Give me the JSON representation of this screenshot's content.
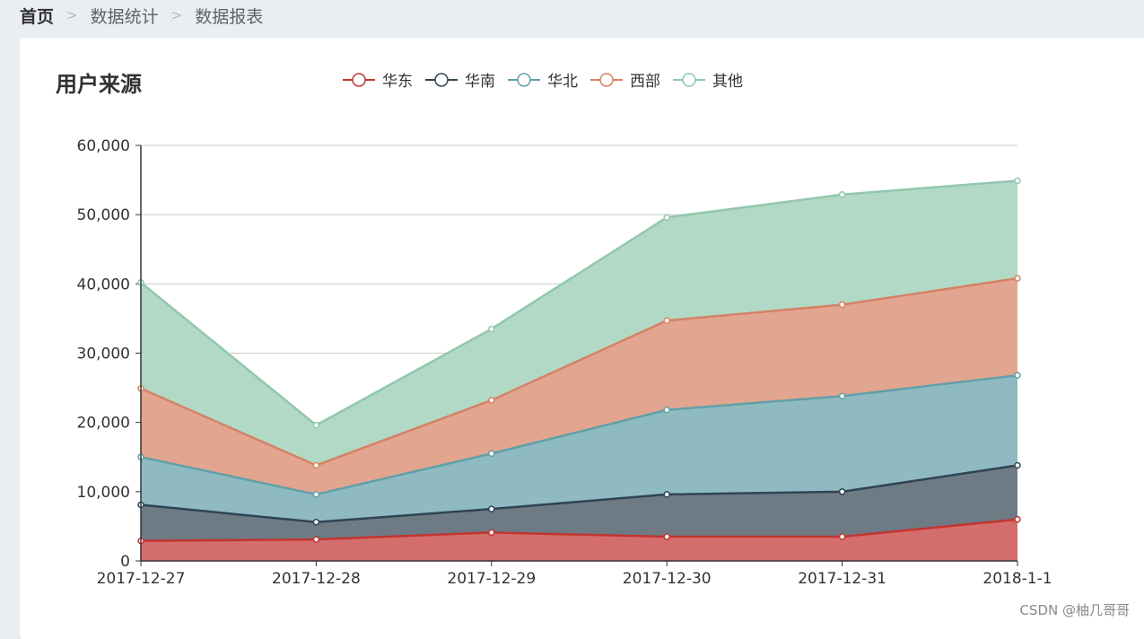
{
  "breadcrumb": {
    "items": [
      "首页",
      "数据统计",
      "数据报表"
    ],
    "separator": ">"
  },
  "card": {
    "title": "用户来源"
  },
  "watermark": "CSDN @柚几哥哥",
  "chart_data": {
    "type": "area",
    "stacked": true,
    "title": "用户来源",
    "categories": [
      "2017-12-27",
      "2017-12-28",
      "2017-12-29",
      "2017-12-30",
      "2017-12-31",
      "2018-1-1"
    ],
    "ylim": [
      0,
      60000
    ],
    "yticks": [
      0,
      10000,
      20000,
      30000,
      40000,
      50000,
      60000
    ],
    "ytick_labels": [
      "0",
      "10,000",
      "20,000",
      "30,000",
      "40,000",
      "50,000",
      "60,000"
    ],
    "grid": true,
    "legend_position": "top",
    "series": [
      {
        "name": "华东",
        "color": "#c23531",
        "fill": "#d46e6c",
        "values": [
          2900,
          3100,
          4100,
          3500,
          3500,
          6000
        ]
      },
      {
        "name": "华南",
        "color": "#2f4554",
        "fill": "#6e7a84",
        "values": [
          5200,
          2500,
          3400,
          6100,
          6500,
          7800
        ]
      },
      {
        "name": "华北",
        "color": "#61a0a8",
        "fill": "#90bac1",
        "values": [
          6900,
          4000,
          8000,
          12200,
          13800,
          13000
        ]
      },
      {
        "name": "西部",
        "color": "#d48265",
        "fill": "#e2a590",
        "values": [
          9900,
          4200,
          7700,
          12900,
          13200,
          14000
        ]
      },
      {
        "name": "其他",
        "color": "#91c7ae",
        "fill": "#b2d9c5",
        "values": [
          15300,
          5800,
          10300,
          14900,
          15900,
          14100
        ]
      }
    ]
  }
}
